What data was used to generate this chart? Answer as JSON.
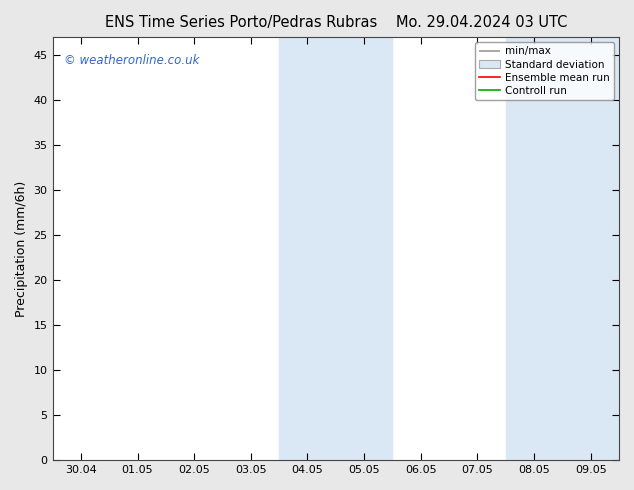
{
  "title_left": "ENS Time Series Porto/Pedras Rubras",
  "title_right": "Mo. 29.04.2024 03 UTC",
  "ylabel": "Precipitation (mm/6h)",
  "watermark": "© weatheronline.co.uk",
  "xtick_labels": [
    "30.04",
    "01.05",
    "02.05",
    "03.05",
    "04.05",
    "05.05",
    "06.05",
    "07.05",
    "08.05",
    "09.05"
  ],
  "xtick_positions": [
    0,
    1,
    2,
    3,
    4,
    5,
    6,
    7,
    8,
    9
  ],
  "ylim": [
    0,
    47
  ],
  "yticks": [
    0,
    5,
    10,
    15,
    20,
    25,
    30,
    35,
    40,
    45
  ],
  "xlim": [
    -0.5,
    9.5
  ],
  "shaded_regions": [
    {
      "xmin": 3.5,
      "xmax": 4.5,
      "color": "#dae8f5"
    },
    {
      "xmin": 4.5,
      "xmax": 5.5,
      "color": "#dae8f5"
    },
    {
      "xmin": 7.5,
      "xmax": 8.5,
      "color": "#dae8f5"
    },
    {
      "xmin": 8.5,
      "xmax": 9.5,
      "color": "#dae8f5"
    }
  ],
  "legend_labels": [
    "min/max",
    "Standard deviation",
    "Ensemble mean run",
    "Controll run"
  ],
  "legend_colors": [
    "#999999",
    "#bbbbbb",
    "#ff0000",
    "#00aa00"
  ],
  "background_color": "#e8e8e8",
  "plot_bg_color": "#ffffff",
  "title_fontsize": 10.5,
  "axis_label_fontsize": 9,
  "tick_fontsize": 8,
  "watermark_color": "#3366cc",
  "watermark_fontsize": 8.5
}
